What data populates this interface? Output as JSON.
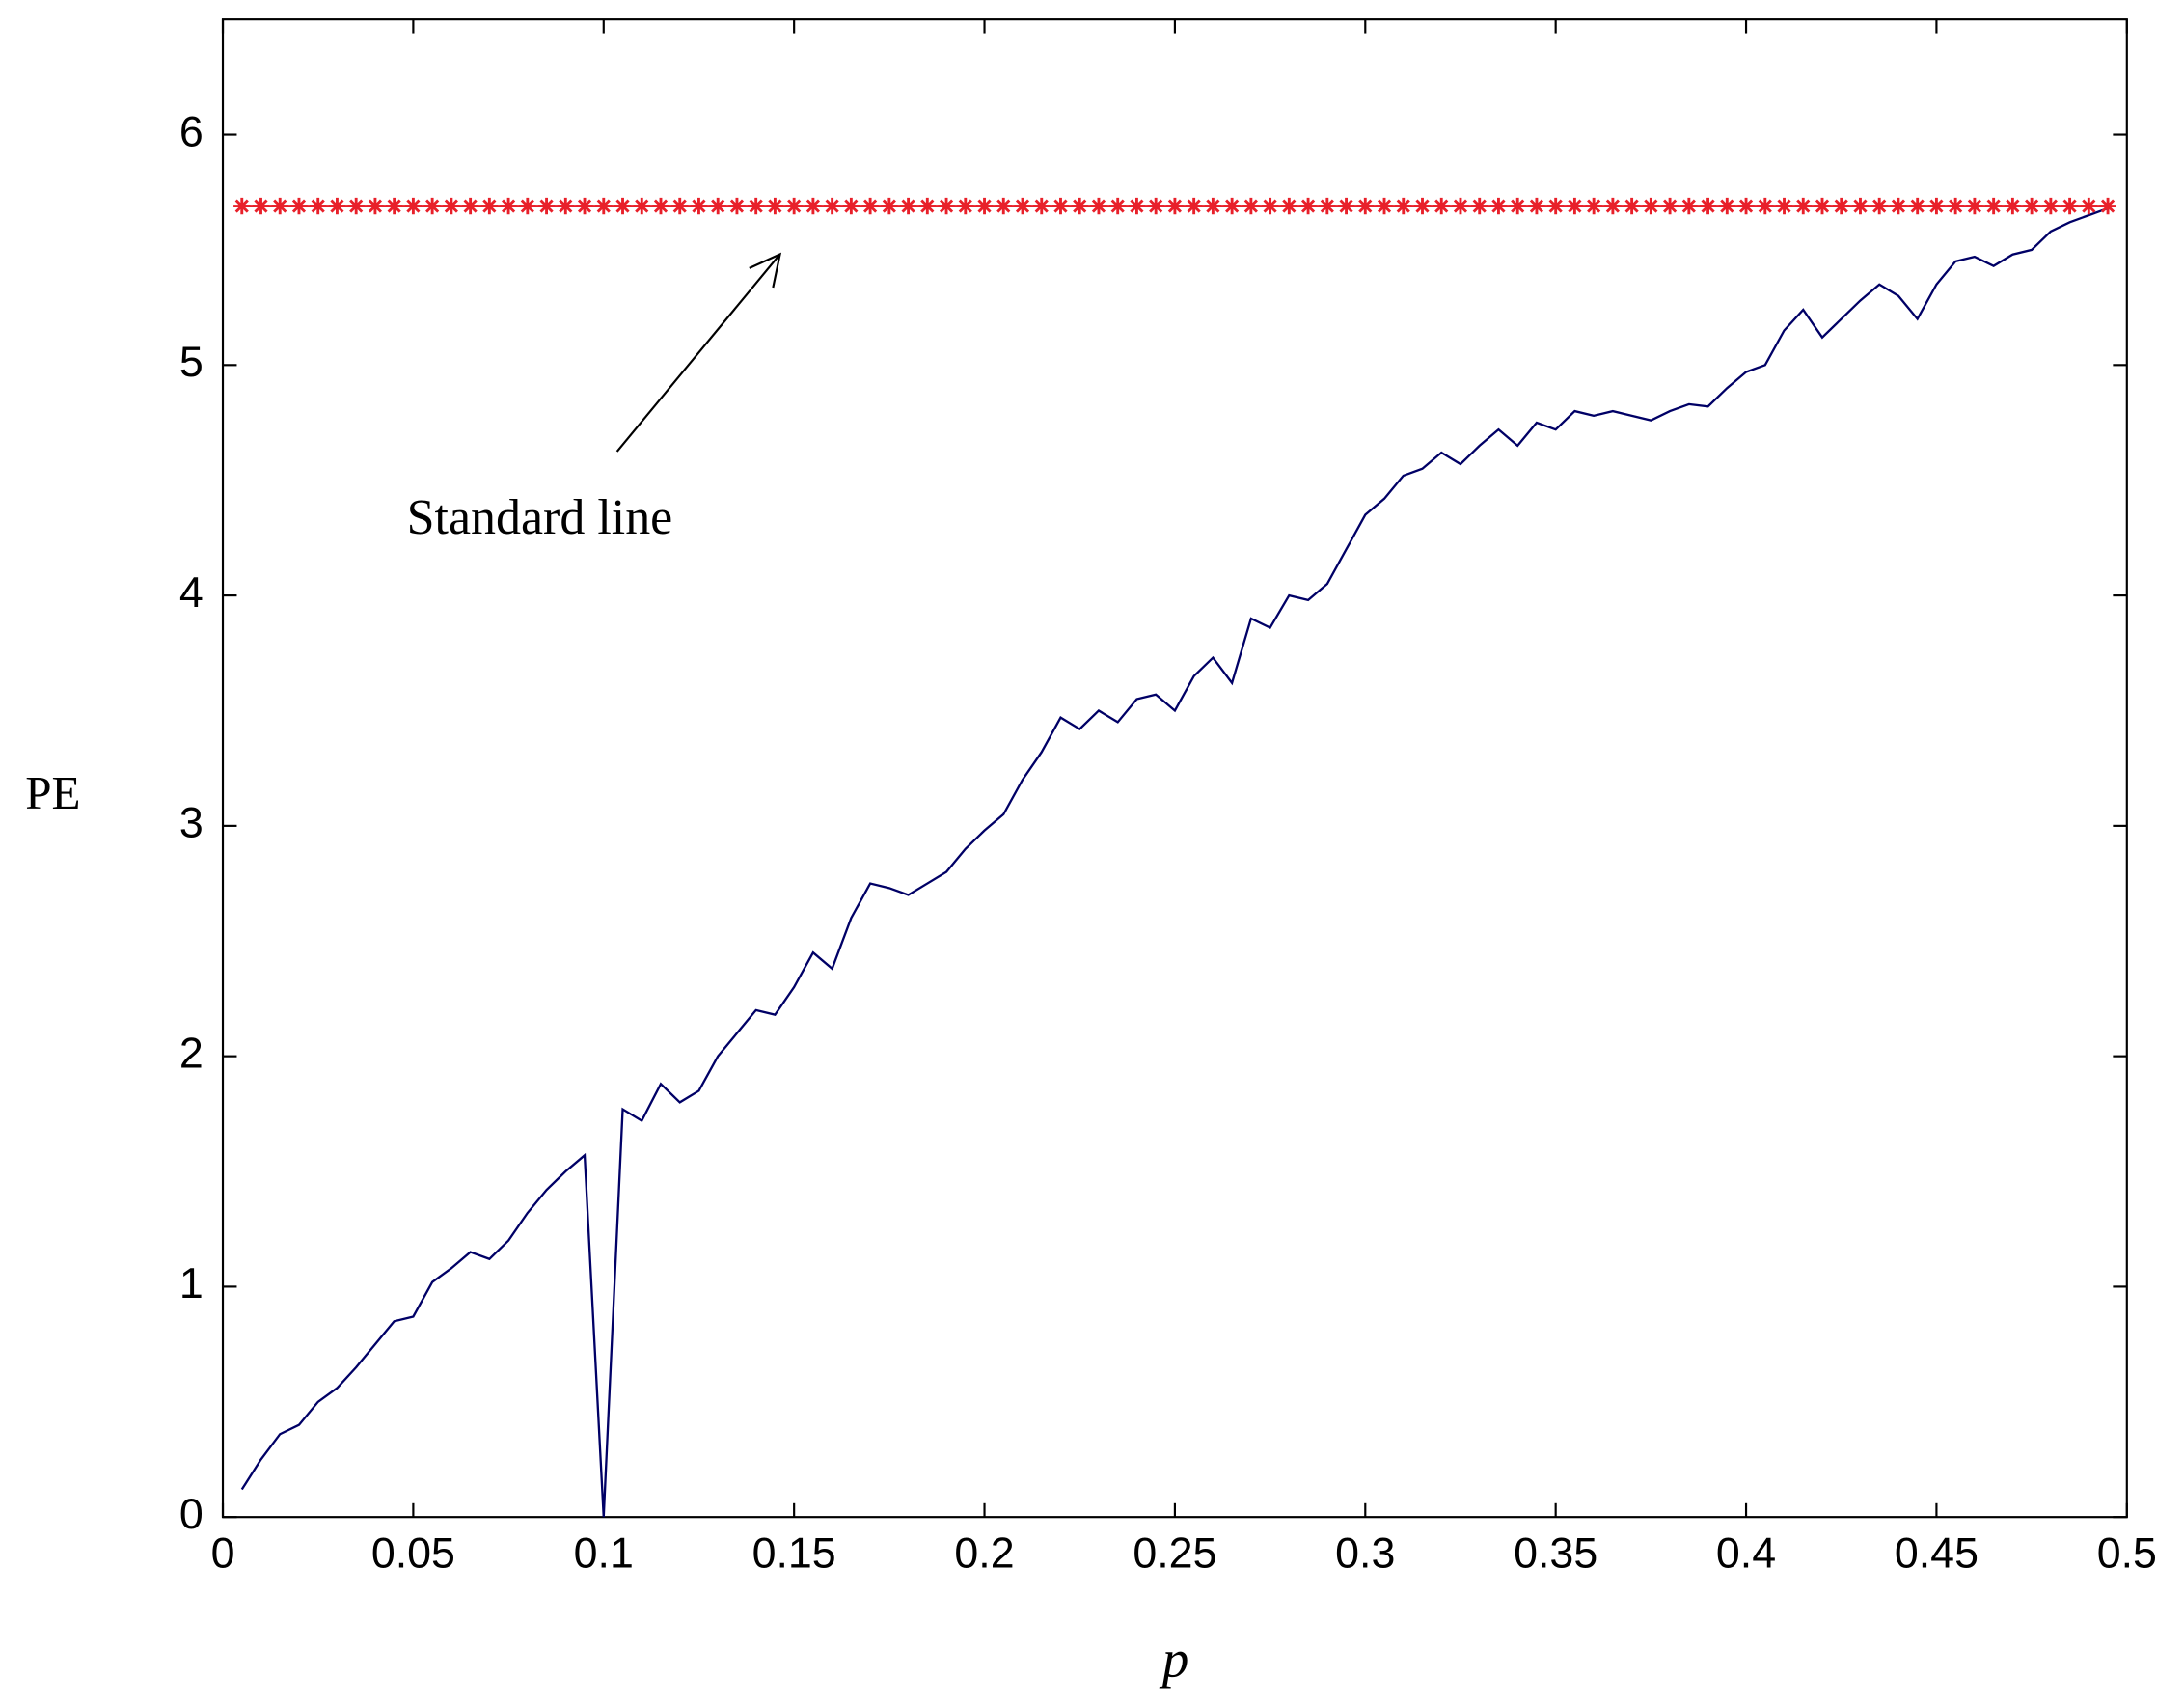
{
  "chart_data": {
    "type": "line",
    "xlabel": "p",
    "ylabel": "PE",
    "annotation": "Standard line",
    "xlim": [
      0,
      0.5
    ],
    "ylim": [
      0,
      6.5
    ],
    "xticks": [
      0,
      0.05,
      0.1,
      0.15,
      0.2,
      0.25,
      0.3,
      0.35,
      0.4,
      0.45,
      0.5
    ],
    "yticks": [
      0,
      1,
      2,
      3,
      4,
      5,
      6
    ],
    "grid": false,
    "x": [
      0.005,
      0.01,
      0.015,
      0.02,
      0.025,
      0.03,
      0.035,
      0.04,
      0.045,
      0.05,
      0.055,
      0.06,
      0.065,
      0.07,
      0.075,
      0.08,
      0.085,
      0.09,
      0.095,
      0.1,
      0.105,
      0.11,
      0.115,
      0.12,
      0.125,
      0.13,
      0.135,
      0.14,
      0.145,
      0.15,
      0.155,
      0.16,
      0.165,
      0.17,
      0.175,
      0.18,
      0.185,
      0.19,
      0.195,
      0.2,
      0.205,
      0.21,
      0.215,
      0.22,
      0.225,
      0.23,
      0.235,
      0.24,
      0.245,
      0.25,
      0.255,
      0.26,
      0.265,
      0.27,
      0.275,
      0.28,
      0.285,
      0.29,
      0.295,
      0.3,
      0.305,
      0.31,
      0.315,
      0.32,
      0.325,
      0.33,
      0.335,
      0.34,
      0.345,
      0.35,
      0.355,
      0.36,
      0.365,
      0.37,
      0.375,
      0.38,
      0.385,
      0.39,
      0.395,
      0.4,
      0.405,
      0.41,
      0.415,
      0.42,
      0.425,
      0.43,
      0.435,
      0.44,
      0.445,
      0.45,
      0.455,
      0.46,
      0.465,
      0.47,
      0.475,
      0.48,
      0.485,
      0.49,
      0.495
    ],
    "series": [
      {
        "name": "PE",
        "color": "#000066",
        "marker": "none",
        "values": [
          0.12,
          0.25,
          0.36,
          0.4,
          0.5,
          0.56,
          0.65,
          0.75,
          0.85,
          0.87,
          1.02,
          1.08,
          1.15,
          1.12,
          1.2,
          1.32,
          1.42,
          1.5,
          1.57,
          0.0,
          1.77,
          1.72,
          1.88,
          1.8,
          1.85,
          2.0,
          2.1,
          2.2,
          2.18,
          2.3,
          2.45,
          2.38,
          2.6,
          2.75,
          2.73,
          2.7,
          2.75,
          2.8,
          2.9,
          2.98,
          3.05,
          3.2,
          3.32,
          3.47,
          3.42,
          3.5,
          3.45,
          3.55,
          3.57,
          3.5,
          3.65,
          3.73,
          3.62,
          3.9,
          3.86,
          4.0,
          3.98,
          4.05,
          4.2,
          4.35,
          4.42,
          4.52,
          4.55,
          4.62,
          4.57,
          4.65,
          4.72,
          4.65,
          4.75,
          4.72,
          4.8,
          4.78,
          4.8,
          4.78,
          4.76,
          4.8,
          4.83,
          4.82,
          4.9,
          4.97,
          5.0,
          5.15,
          5.24,
          5.12,
          5.2,
          5.28,
          5.35,
          5.3,
          5.2,
          5.35,
          5.45,
          5.47,
          5.43,
          5.48,
          5.5,
          5.58,
          5.62,
          5.65,
          5.68
        ]
      },
      {
        "name": "Standard line",
        "color": "#e8202a",
        "marker": "star",
        "values": [
          5.69,
          5.69,
          5.69,
          5.69,
          5.69,
          5.69,
          5.69,
          5.69,
          5.69,
          5.69,
          5.69,
          5.69,
          5.69,
          5.69,
          5.69,
          5.69,
          5.69,
          5.69,
          5.69,
          5.69,
          5.69,
          5.69,
          5.69,
          5.69,
          5.69,
          5.69,
          5.69,
          5.69,
          5.69,
          5.69,
          5.69,
          5.69,
          5.69,
          5.69,
          5.69,
          5.69,
          5.69,
          5.69,
          5.69,
          5.69,
          5.69,
          5.69,
          5.69,
          5.69,
          5.69,
          5.69,
          5.69,
          5.69,
          5.69,
          5.69,
          5.69,
          5.69,
          5.69,
          5.69,
          5.69,
          5.69,
          5.69,
          5.69,
          5.69,
          5.69,
          5.69,
          5.69,
          5.69,
          5.69,
          5.69,
          5.69,
          5.69,
          5.69,
          5.69,
          5.69,
          5.69,
          5.69,
          5.69,
          5.69,
          5.69,
          5.69,
          5.69,
          5.69,
          5.69,
          5.69,
          5.69,
          5.69,
          5.69,
          5.69,
          5.69,
          5.69,
          5.69,
          5.69,
          5.69,
          5.69,
          5.69,
          5.69,
          5.69,
          5.69,
          5.69,
          5.69,
          5.69,
          5.69,
          5.69
        ]
      }
    ]
  }
}
